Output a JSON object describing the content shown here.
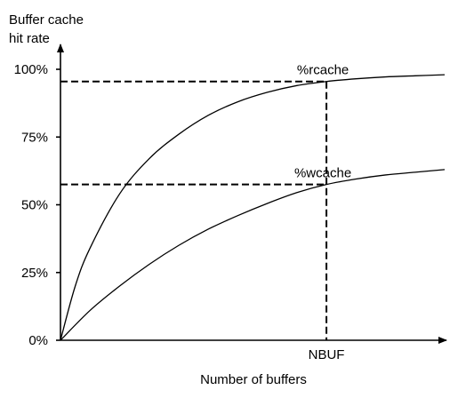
{
  "chart_data": {
    "type": "line",
    "ylabel_line1": "Buffer cache",
    "ylabel_line2": "hit rate",
    "xlabel": "Number of buffers",
    "ylim": [
      0,
      100
    ],
    "xlim": [
      0,
      1.3
    ],
    "yticks": [
      {
        "value": 0,
        "label": "0%"
      },
      {
        "value": 25,
        "label": "25%"
      },
      {
        "value": 50,
        "label": "50%"
      },
      {
        "value": 75,
        "label": "75%"
      },
      {
        "value": 100,
        "label": "100%"
      }
    ],
    "xmarker": {
      "value": 0.9,
      "label": "NBUF"
    },
    "series": [
      {
        "name": "%rcache",
        "x": [
          0,
          0.05,
          0.1,
          0.2,
          0.3,
          0.4,
          0.5,
          0.6,
          0.7,
          0.8,
          0.9,
          1.0,
          1.1,
          1.2,
          1.3
        ],
        "y": [
          0,
          20,
          34,
          54,
          67,
          76,
          83,
          88,
          91.5,
          94,
          95.5,
          96.5,
          97.2,
          97.6,
          98
        ]
      },
      {
        "name": "%wcache",
        "x": [
          0,
          0.1,
          0.2,
          0.3,
          0.4,
          0.5,
          0.6,
          0.7,
          0.8,
          0.9,
          1.0,
          1.1,
          1.2,
          1.3
        ],
        "y": [
          0,
          11,
          20,
          28,
          35,
          41,
          46,
          50.5,
          54.5,
          57.5,
          59.5,
          61,
          62,
          63
        ]
      }
    ],
    "reference_levels": [
      {
        "series": "%rcache",
        "value": 95.5
      },
      {
        "series": "%wcache",
        "value": 57.5
      }
    ]
  }
}
